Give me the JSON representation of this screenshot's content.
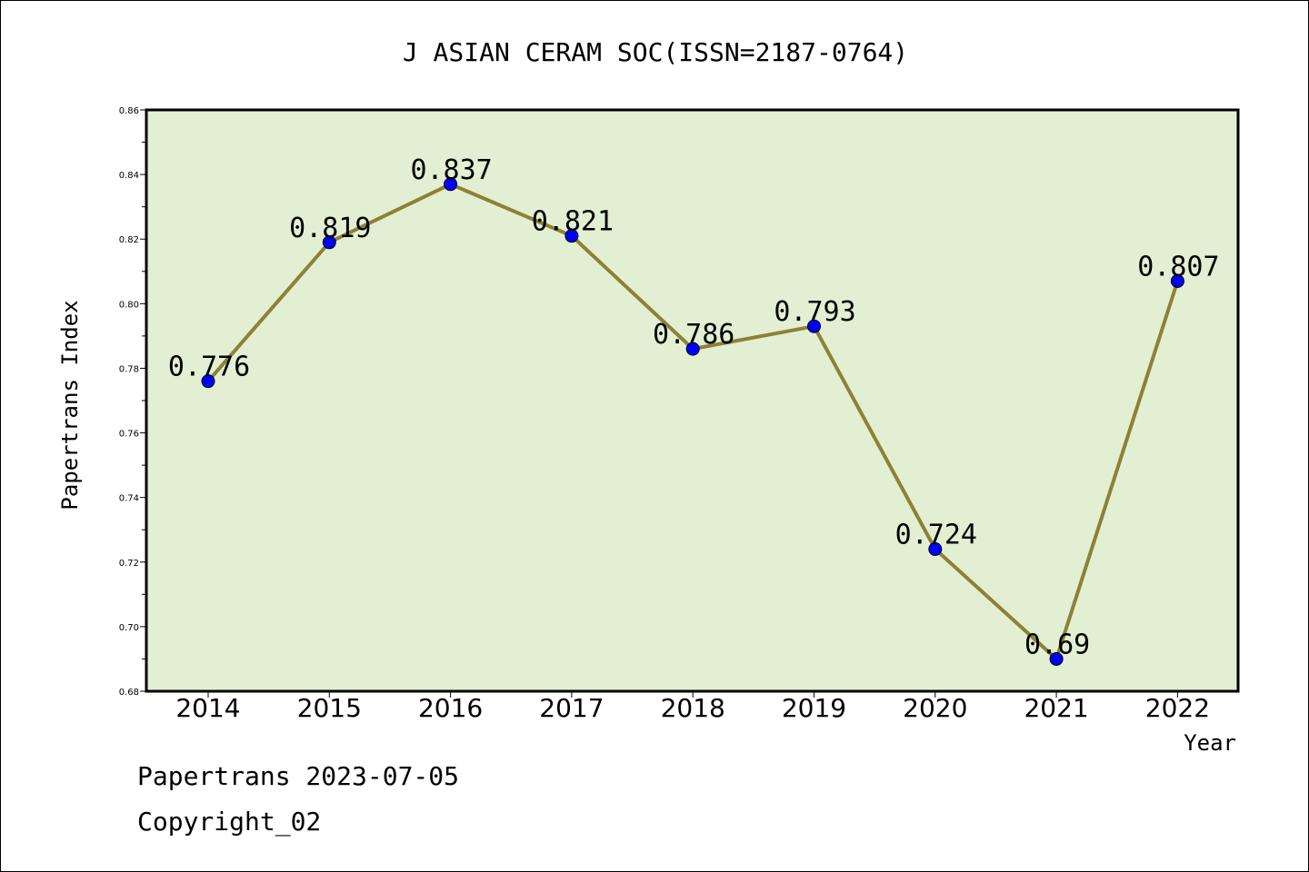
{
  "chart_data": {
    "type": "line",
    "title": "J ASIAN CERAM SOC(ISSN=2187-0764)",
    "xlabel": "Year",
    "ylabel": "Papertrans Index",
    "categories": [
      "2014",
      "2015",
      "2016",
      "2017",
      "2018",
      "2019",
      "2020",
      "2021",
      "2022"
    ],
    "series": [
      {
        "values": [
          0.776,
          0.819,
          0.837,
          0.821,
          0.786,
          0.793,
          0.724,
          0.69,
          0.807
        ],
        "data_labels": [
          "0.776",
          "0.819",
          "0.837",
          "0.821",
          "0.786",
          "0.793",
          "0.724",
          "0.69",
          "0.807"
        ]
      }
    ],
    "ylim": [
      0.68,
      0.86
    ],
    "yticks": [
      "0.68",
      "0.70",
      "0.72",
      "0.74",
      "0.76",
      "0.78",
      "0.80",
      "0.82",
      "0.84",
      "0.86"
    ],
    "grid": false,
    "legend": "none",
    "colors": {
      "plot_background": "#e2efd3",
      "line": "#8c8135",
      "marker": "#0000ff",
      "frame": "#000000"
    }
  },
  "footer": {
    "line1": "Papertrans 2023-07-05",
    "line2": "Copyright_02"
  }
}
